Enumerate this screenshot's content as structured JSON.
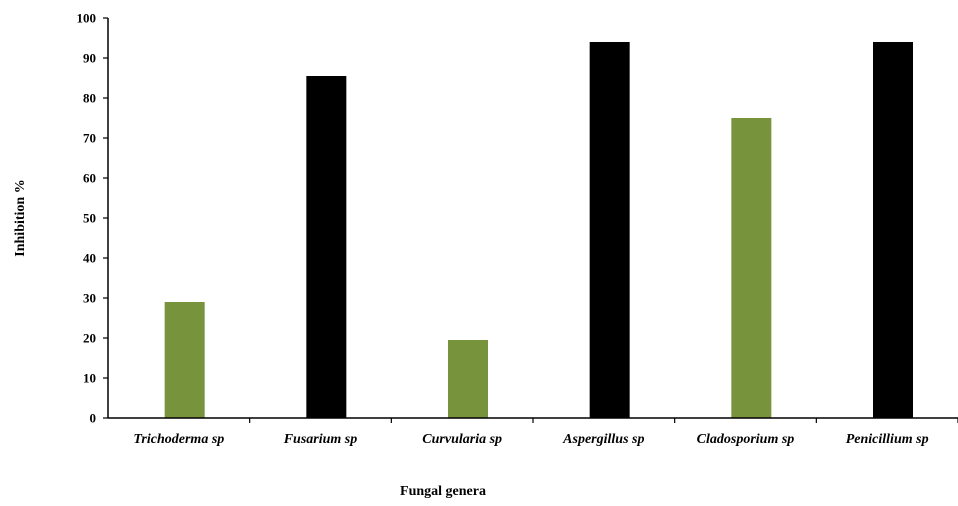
{
  "chart_data": {
    "type": "bar",
    "categories": [
      "Trichoderma sp",
      "Fusarium sp",
      "Curvularia sp",
      "Aspergillus sp",
      "Cladosporium sp",
      "Penicillium sp"
    ],
    "values": [
      29,
      85.5,
      19.5,
      94,
      75,
      94
    ],
    "bar_colors": [
      "#77933c",
      "#000000",
      "#77933c",
      "#000000",
      "#77933c",
      "#000000"
    ],
    "title": "",
    "xlabel": "Fungal genera",
    "ylabel": "Inhibition %",
    "ylim": [
      0,
      100
    ],
    "yticks": [
      "0",
      "10",
      "20",
      "30",
      "40",
      "50",
      "60",
      "70",
      "80",
      "90",
      "100"
    ],
    "grid": false,
    "legend": "none"
  }
}
